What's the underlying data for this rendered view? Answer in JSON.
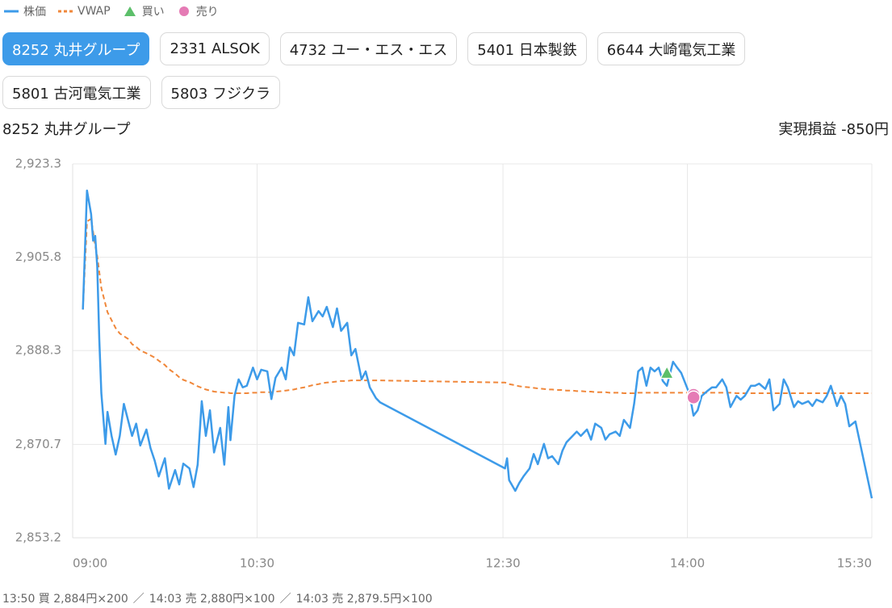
{
  "tabs": {
    "items": [
      "8252 丸井グループ",
      "2331 ALSOK",
      "4732 ユー・エス・エス",
      "5401 日本製鉄",
      "6644 大崎電気工業",
      "5801 古河電気工業",
      "5803 フジクラ"
    ],
    "selected": 0
  },
  "pnl_label": "実現損益 -850円",
  "footer": {
    "fills": [
      "13:50 買 2,884円×200",
      "14:03 売 2,880円×100",
      "14:03 売 2,879.5円×100"
    ],
    "separator": "／"
  },
  "chart_data": {
    "type": "line",
    "title": "8252 丸井グループ",
    "x": [
      "09:05",
      "09:07",
      "09:09",
      "09:10",
      "09:11",
      "09:12",
      "09:13",
      "09:14",
      "09:16",
      "09:17",
      "09:19",
      "09:21",
      "09:23",
      "09:25",
      "09:27",
      "09:29",
      "09:31",
      "09:33",
      "09:36",
      "09:38",
      "09:40",
      "09:42",
      "09:45",
      "09:47",
      "09:50",
      "09:52",
      "09:54",
      "09:57",
      "09:59",
      "10:01",
      "10:03",
      "10:05",
      "10:07",
      "10:09",
      "10:12",
      "10:14",
      "10:16",
      "10:17",
      "10:19",
      "10:21",
      "10:23",
      "10:25",
      "10:28",
      "10:30",
      "10:32",
      "10:35",
      "10:37",
      "10:39",
      "10:42",
      "10:44",
      "10:46",
      "10:48",
      "10:50",
      "10:53",
      "10:55",
      "10:57",
      "11:00",
      "11:02",
      "11:04",
      "11:07",
      "11:09",
      "11:11",
      "11:14",
      "11:16",
      "11:18",
      "11:21",
      "11:23",
      "11:25",
      "11:28",
      "11:30",
      "12:31",
      "12:32",
      "12:33",
      "12:36",
      "12:38",
      "12:40",
      "12:43",
      "12:45",
      "12:47",
      "12:50",
      "12:52",
      "12:54",
      "12:57",
      "12:59",
      "13:01",
      "13:04",
      "13:06",
      "13:08",
      "13:11",
      "13:13",
      "13:15",
      "13:18",
      "13:20",
      "13:22",
      "13:25",
      "13:27",
      "13:29",
      "13:32",
      "13:34",
      "13:36",
      "13:38",
      "13:40",
      "13:42",
      "13:44",
      "13:46",
      "13:48",
      "13:50",
      "13:53",
      "13:55",
      "13:57",
      "14:01",
      "14:03",
      "14:05",
      "14:07",
      "14:10",
      "14:12",
      "14:14",
      "14:17",
      "14:19",
      "14:21",
      "14:24",
      "14:26",
      "14:28",
      "14:31",
      "14:33",
      "14:35",
      "14:38",
      "14:40",
      "14:42",
      "14:45",
      "14:47",
      "14:49",
      "14:52",
      "14:54",
      "14:56",
      "14:59",
      "15:01",
      "15:03",
      "15:06",
      "15:08",
      "15:10",
      "15:13",
      "15:15",
      "15:17",
      "15:19",
      "15:22",
      "15:30"
    ],
    "series": [
      {
        "name": "株価",
        "color": "#3d9be9",
        "dashed": false,
        "values": [
          2896.0,
          2918.3,
          2913.9,
          2908.9,
          2909.8,
          2904.1,
          2890.4,
          2880.3,
          2870.8,
          2876.8,
          2872.3,
          2868.8,
          2872.3,
          2878.3,
          2875.3,
          2872.3,
          2874.6,
          2870.5,
          2873.5,
          2870.0,
          2867.7,
          2864.7,
          2868.1,
          2862.4,
          2865.9,
          2863.2,
          2867.1,
          2866.2,
          2862.7,
          2866.9,
          2878.8,
          2872.3,
          2877.1,
          2869.2,
          2873.8,
          2866.9,
          2877.7,
          2871.5,
          2879.8,
          2882.9,
          2881.4,
          2881.7,
          2885.1,
          2882.9,
          2884.7,
          2884.4,
          2879.2,
          2883.2,
          2885.1,
          2882.9,
          2888.9,
          2887.4,
          2893.5,
          2893.2,
          2898.3,
          2893.8,
          2895.7,
          2894.7,
          2896.5,
          2892.7,
          2896.2,
          2892.0,
          2893.5,
          2887.4,
          2888.6,
          2882.9,
          2884.4,
          2881.4,
          2879.4,
          2878.6,
          2866.2,
          2868.1,
          2864.0,
          2862.0,
          2863.5,
          2864.7,
          2866.2,
          2868.9,
          2867.0,
          2870.8,
          2868.1,
          2868.5,
          2867.0,
          2869.5,
          2871.1,
          2872.3,
          2873.1,
          2872.3,
          2873.5,
          2871.6,
          2874.6,
          2873.8,
          2871.6,
          2872.6,
          2873.1,
          2872.3,
          2875.3,
          2873.8,
          2878.3,
          2884.4,
          2885.1,
          2881.7,
          2885.1,
          2884.4,
          2885.1,
          2882.6,
          2881.7,
          2886.2,
          2885.1,
          2884.1,
          2880.2,
          2876.1,
          2877.1,
          2879.8,
          2880.8,
          2881.4,
          2881.4,
          2882.9,
          2881.4,
          2877.7,
          2879.8,
          2879.1,
          2879.8,
          2881.7,
          2881.7,
          2882.1,
          2881.1,
          2882.9,
          2877.1,
          2878.3,
          2882.9,
          2881.4,
          2877.7,
          2878.8,
          2878.3,
          2878.8,
          2877.9,
          2879.1,
          2878.6,
          2879.8,
          2881.7,
          2877.9,
          2879.8,
          2878.3,
          2874.1,
          2875.0,
          2860.6
        ]
      },
      {
        "name": "VWAP",
        "color": "#f0873a",
        "dashed": true,
        "values": [
          2896.0,
          2912.5,
          2913.0,
          2910.5,
          2908.0,
          2906.0,
          2903.0,
          2900.0,
          2897.0,
          2895.5,
          2894.0,
          2892.5,
          2891.5,
          2891.0,
          2890.5,
          2889.5,
          2889.0,
          2888.3,
          2887.8,
          2887.4,
          2887.0,
          2886.4,
          2885.6,
          2884.8,
          2884.0,
          2883.3,
          2882.8,
          2882.4,
          2882.0,
          2881.6,
          2881.3,
          2881.0,
          2880.8,
          2880.6,
          2880.5,
          2880.4,
          2880.4,
          2880.3,
          2880.3,
          2880.3,
          2880.3,
          2880.3,
          2880.4,
          2880.4,
          2880.5,
          2880.5,
          2880.5,
          2880.6,
          2880.7,
          2880.8,
          2880.9,
          2881.0,
          2881.2,
          2881.4,
          2881.6,
          2881.8,
          2882.0,
          2882.2,
          2882.3,
          2882.4,
          2882.5,
          2882.6,
          2882.6,
          2882.7,
          2882.7,
          2882.7,
          2882.7,
          2882.7,
          2882.7,
          2882.7,
          2882.3,
          2882.2,
          2882.0,
          2881.8,
          2881.6,
          2881.5,
          2881.4,
          2881.3,
          2881.2,
          2881.1,
          2881.0,
          2881.0,
          2880.9,
          2880.9,
          2880.8,
          2880.8,
          2880.7,
          2880.7,
          2880.6,
          2880.6,
          2880.5,
          2880.5,
          2880.5,
          2880.4,
          2880.4,
          2880.4,
          2880.3,
          2880.3,
          2880.3,
          2880.4,
          2880.4,
          2880.4,
          2880.4,
          2880.4,
          2880.4,
          2880.4,
          2880.4,
          2880.4,
          2880.4,
          2880.4,
          2880.4,
          2880.4,
          2880.4,
          2880.4,
          2880.4,
          2880.4,
          2880.4,
          2880.4,
          2880.4,
          2880.4,
          2880.3,
          2880.3,
          2880.3,
          2880.3,
          2880.3,
          2880.3,
          2880.3,
          2880.3,
          2880.3,
          2880.3,
          2880.3,
          2880.3,
          2880.3,
          2880.3,
          2880.3,
          2880.3,
          2880.3,
          2880.3,
          2880.3,
          2880.3,
          2880.3,
          2880.3,
          2880.3,
          2880.3,
          2880.3,
          2880.3,
          2880.3
        ]
      }
    ],
    "markers": [
      {
        "name": "買い",
        "color": "#5cbf6a",
        "shape": "triangle",
        "x": [
          "13:50"
        ],
        "values": [
          2884
        ]
      },
      {
        "name": "売り",
        "color": "#e57bb5",
        "shape": "circle",
        "x": [
          "14:03",
          "14:03"
        ],
        "values": [
          2880,
          2879.5
        ]
      }
    ],
    "xlim": [
      "09:00",
      "15:30"
    ],
    "xticks": [
      "09:00",
      "10:30",
      "12:30",
      "14:00",
      "15:30"
    ],
    "ylim": [
      2853.2,
      2923.3
    ],
    "yticks": [
      {
        "value": 2853.2,
        "label": "2,853.2"
      },
      {
        "value": 2870.7,
        "label": "2,870.7"
      },
      {
        "value": 2888.3,
        "label": "2,888.3"
      },
      {
        "value": 2905.8,
        "label": "2,905.8"
      },
      {
        "value": 2923.3,
        "label": "2,923.3"
      }
    ],
    "grid": true
  }
}
